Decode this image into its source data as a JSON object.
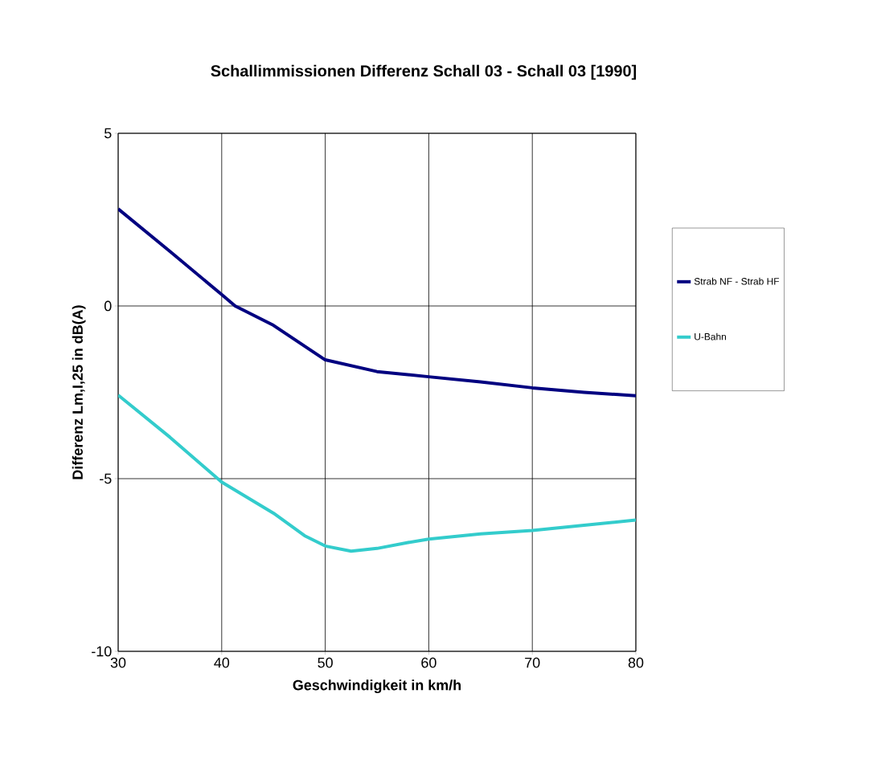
{
  "chart_data": {
    "type": "line",
    "title": "Schallimmissionen Differenz Schall 03 - Schall 03 [1990]",
    "xlabel": "Geschwindigkeit in km/h",
    "ylabel": "Differenz Lm,I,25 in dB(A)",
    "xlim": [
      30,
      80
    ],
    "xticks": [
      30,
      40,
      50,
      60,
      70,
      80
    ],
    "ylim": [
      -10,
      5
    ],
    "yticks": [
      -10,
      -5,
      0,
      5
    ],
    "grid": true,
    "legend": "right",
    "marker": "none",
    "line_style": "solid",
    "series": [
      {
        "name": "Strab NF - Strab HF",
        "color": "#000080",
        "x": [
          30,
          35,
          40,
          41.3,
          45,
          50,
          55,
          60,
          65,
          70,
          75,
          80
        ],
        "values": [
          2.81,
          1.58,
          0.33,
          0,
          -0.56,
          -1.56,
          -1.9,
          -2.05,
          -2.2,
          -2.37,
          -2.5,
          -2.6
        ]
      },
      {
        "name": "U-Bahn",
        "color": "#33CCCC",
        "x": [
          30,
          35,
          40,
          45,
          48,
          50,
          52.5,
          55,
          58,
          60,
          65,
          70,
          75,
          80
        ],
        "values": [
          -2.58,
          -3.8,
          -5.1,
          -6.0,
          -6.65,
          -6.95,
          -7.1,
          -7.02,
          -6.85,
          -6.75,
          -6.6,
          -6.5,
          -6.35,
          -6.2
        ]
      }
    ]
  }
}
